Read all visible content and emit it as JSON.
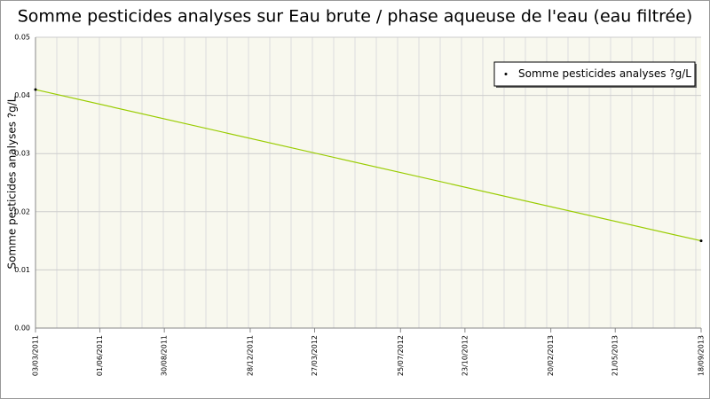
{
  "chart_data": {
    "type": "line",
    "title": "Somme pesticides analyses sur Eau brute / phase aqueuse de l'eau (eau filtrée)",
    "ylabel": "Somme pesticides analyses ?g/L",
    "x": [
      "03/03/2011",
      "18/09/2013"
    ],
    "series": [
      {
        "name": "Somme pesticides analyses ?g/L",
        "color": "#99cc00",
        "values": [
          0.041,
          0.015
        ]
      }
    ],
    "xlim": [
      "03/03/2011",
      "18/09/2013"
    ],
    "xticks": [
      "03/03/2011",
      "01/06/2011",
      "30/08/2011",
      "28/12/2011",
      "27/03/2012",
      "25/07/2012",
      "23/10/2012",
      "20/02/2013",
      "21/05/2013",
      "18/09/2013"
    ],
    "ylim": [
      0,
      0.05
    ],
    "yticks": [
      {
        "value": 0,
        "label": "0.00"
      },
      0.01,
      0.02,
      0.03,
      0.04,
      0.05
    ],
    "grid": true,
    "legend": "upper right"
  }
}
